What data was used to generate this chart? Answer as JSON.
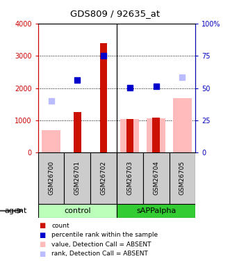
{
  "title": "GDS809 / 92635_at",
  "categories": [
    "GSM26700",
    "GSM26701",
    "GSM26702",
    "GSM26703",
    "GSM26704",
    "GSM26705"
  ],
  "red_bars": [
    0,
    1250,
    3400,
    1050,
    1080,
    0
  ],
  "pink_bars": [
    700,
    0,
    0,
    1040,
    1060,
    1680
  ],
  "blue_squares": [
    null,
    2250,
    3000,
    2020,
    2050,
    null
  ],
  "lav_squares": [
    1600,
    null,
    null,
    null,
    null,
    2330
  ],
  "ylim_left": [
    0,
    4000
  ],
  "ylim_right": [
    0,
    100
  ],
  "left_color": "#cc0000",
  "right_color": "#0000bb",
  "ctrl_color": "#bbffbb",
  "sapp_color": "#33cc33",
  "gray_color": "#cccccc",
  "pink_color": "#ffbbbb",
  "lav_color": "#bbbbff",
  "red_color": "#cc1100",
  "blue_color": "#0000cc",
  "legend": [
    {
      "label": "count",
      "color": "#cc1100"
    },
    {
      "label": "percentile rank within the sample",
      "color": "#0000cc"
    },
    {
      "label": "value, Detection Call = ABSENT",
      "color": "#ffbbbb"
    },
    {
      "label": "rank, Detection Call = ABSENT",
      "color": "#bbbbff"
    }
  ]
}
